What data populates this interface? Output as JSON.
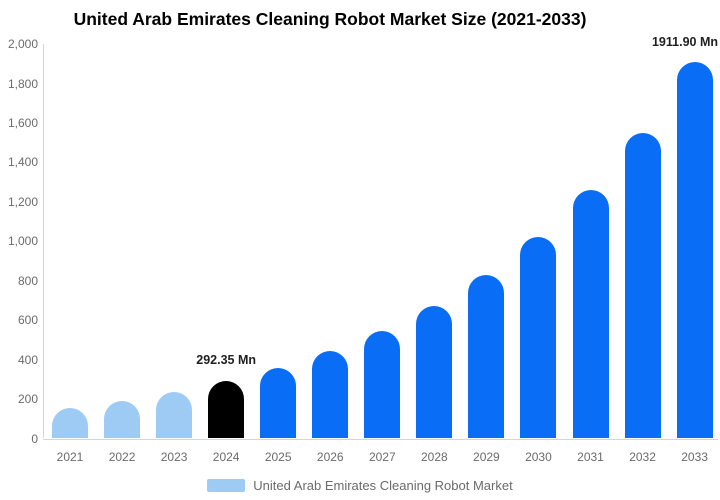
{
  "chart_data": {
    "type": "bar",
    "title": "United Arab Emirates Cleaning Robot Market Size (2021-2033)",
    "unit": "Mn",
    "categories": [
      "2021",
      "2022",
      "2023",
      "2024",
      "2025",
      "2026",
      "2027",
      "2028",
      "2029",
      "2030",
      "2031",
      "2032",
      "2033"
    ],
    "values": [
      156,
      192,
      237,
      292.35,
      360,
      444,
      547,
      674,
      830,
      1022,
      1260,
      1552,
      1911.9
    ],
    "bar_colors": [
      "#9ECBF4",
      "#9ECBF4",
      "#9ECBF4",
      "#000000",
      "#0A6DF6",
      "#0A6DF6",
      "#0A6DF6",
      "#0A6DF6",
      "#0A6DF6",
      "#0A6DF6",
      "#0A6DF6",
      "#0A6DF6",
      "#0A6DF6"
    ],
    "colors": {
      "historical": "#9ECBF4",
      "base_year": "#000000",
      "forecast": "#0A6DF6",
      "axis_text": "#6b6b6b",
      "axis_line": "#d6d6d6",
      "title": "#000000"
    },
    "ylim": [
      0,
      2000
    ],
    "grid": false,
    "y_ticks": [
      {
        "value": 0,
        "label": "0"
      },
      {
        "value": 200,
        "label": "200"
      },
      {
        "value": 400,
        "label": "400"
      },
      {
        "value": 600,
        "label": "600"
      },
      {
        "value": 800,
        "label": "800"
      },
      {
        "value": 1000,
        "label": "1,000"
      },
      {
        "value": 1200,
        "label": "1,200"
      },
      {
        "value": 1400,
        "label": "1,400"
      },
      {
        "value": 1600,
        "label": "1,600"
      },
      {
        "value": 1800,
        "label": "1,800"
      },
      {
        "value": 2000,
        "label": "2,000"
      }
    ],
    "annotations": [
      {
        "category": "2024",
        "text": "292.35 Mn",
        "placement": "above-bar-center"
      },
      {
        "category": "2033",
        "text": "1911.90 Mn",
        "placement": "above-bar-right-edge"
      }
    ],
    "legend": {
      "position": "bottom",
      "label": "United Arab Emirates Cleaning Robot Market",
      "swatch_color": "#9ECBF4"
    },
    "xlabel": "",
    "ylabel": ""
  }
}
